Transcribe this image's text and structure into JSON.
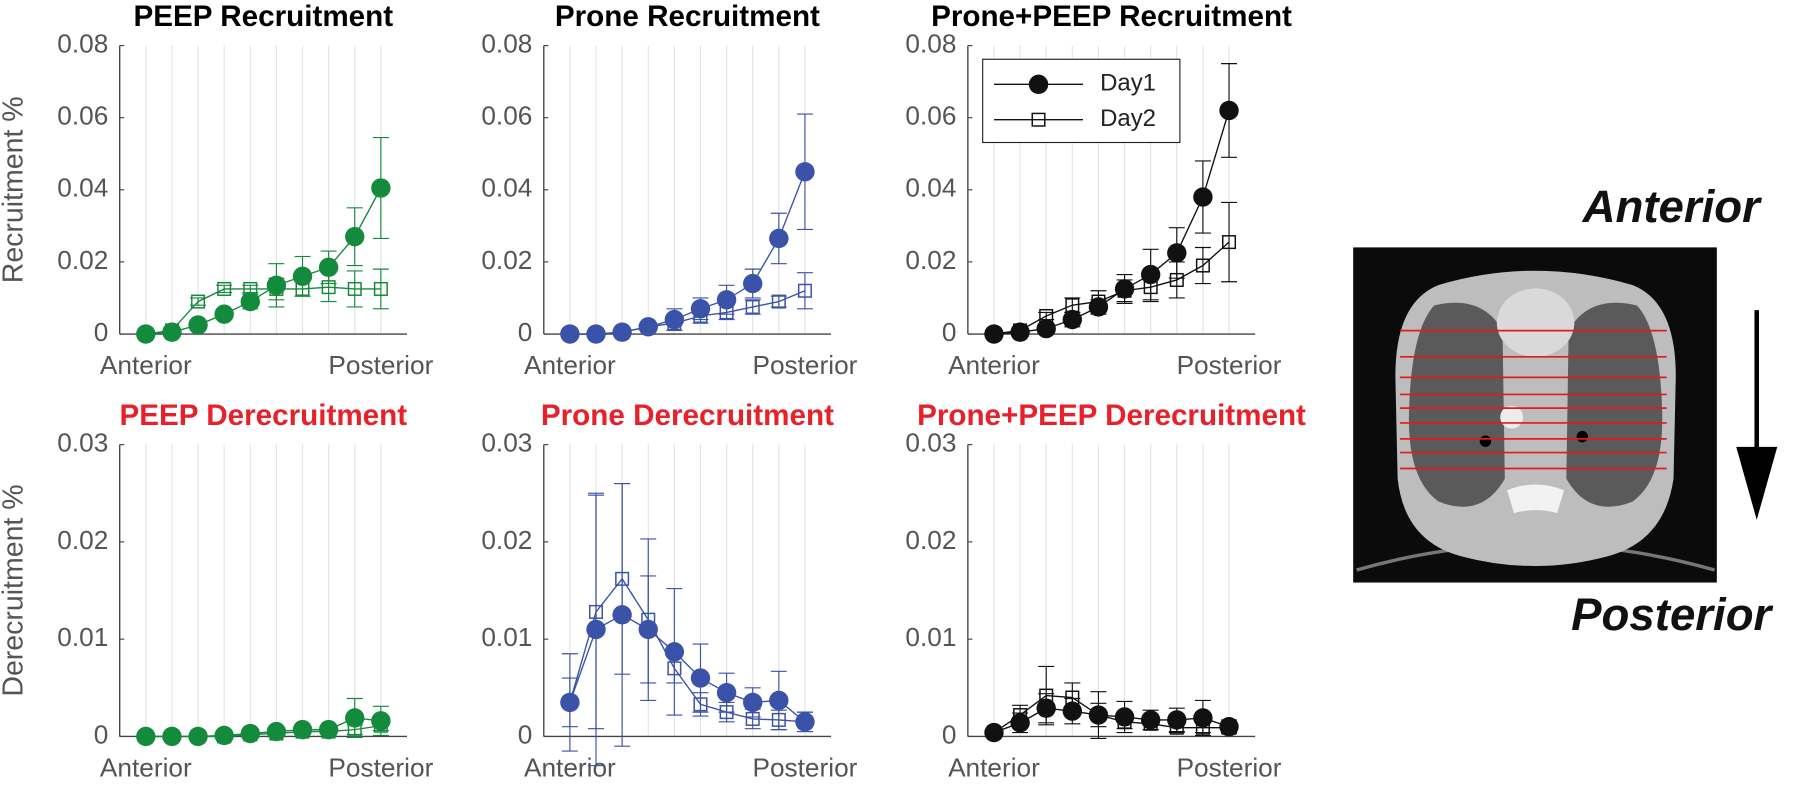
{
  "chart_data": [
    {
      "type": "line",
      "title": "PEEP Recruitment",
      "title_color": "#000000",
      "ylabel": "Recruitment %",
      "categories": [
        "Anterior",
        null,
        null,
        null,
        null,
        null,
        null,
        null,
        null,
        "Posterior"
      ],
      "ylim": [
        0,
        0.08
      ],
      "yticks": [
        0,
        0.02,
        0.04,
        0.06,
        0.08
      ],
      "grid": "x",
      "series": [
        {
          "name": "Day1",
          "color": "#148a3c",
          "marker": "circle",
          "values": [
            0,
            0.0005,
            0.0025,
            0.0055,
            0.009,
            0.0135,
            0.016,
            0.0185,
            0.027,
            0.0405
          ],
          "errors": [
            0,
            0.001,
            0.001,
            0.001,
            0.002,
            0.006,
            0.0055,
            0.0045,
            0.008,
            0.014
          ]
        },
        {
          "name": "Day2",
          "color": "#148a3c",
          "marker": "square",
          "values": [
            0,
            0.001,
            0.009,
            0.0125,
            0.0125,
            0.0125,
            0.0125,
            0.013,
            0.0125,
            0.0125
          ],
          "errors": [
            0,
            0.001,
            0.001,
            0.001,
            0.001,
            0.003,
            0.002,
            0.004,
            0.005,
            0.0055
          ]
        }
      ]
    },
    {
      "type": "line",
      "title": "Prone Recruitment",
      "title_color": "#000000",
      "categories": [
        "Anterior",
        null,
        null,
        null,
        null,
        null,
        null,
        null,
        null,
        "Posterior"
      ],
      "ylim": [
        0,
        0.08
      ],
      "yticks": [
        0,
        0.02,
        0.04,
        0.06,
        0.08
      ],
      "grid": "x",
      "series": [
        {
          "name": "Day1",
          "color": "#3a52a8",
          "marker": "circle",
          "values": [
            0,
            0,
            0.0005,
            0.002,
            0.004,
            0.007,
            0.0095,
            0.014,
            0.0265,
            0.045
          ],
          "errors": [
            0,
            0,
            0,
            0.001,
            0.003,
            0.003,
            0.004,
            0.004,
            0.007,
            0.016
          ]
        },
        {
          "name": "Day2",
          "color": "#3a52a8",
          "marker": "square",
          "values": [
            0,
            0,
            0.0005,
            0.002,
            0.003,
            0.005,
            0.006,
            0.0075,
            0.009,
            0.012
          ],
          "errors": [
            0,
            0,
            0,
            0,
            0.002,
            0.002,
            0.002,
            0.002,
            0.0015,
            0.005
          ]
        }
      ]
    },
    {
      "type": "line",
      "title": "Prone+PEEP Recruitment",
      "title_color": "#000000",
      "legend": "upper-left",
      "categories": [
        "Anterior",
        null,
        null,
        null,
        null,
        null,
        null,
        null,
        null,
        "Posterior"
      ],
      "ylim": [
        0,
        0.08
      ],
      "yticks": [
        0,
        0.02,
        0.04,
        0.06,
        0.08
      ],
      "grid": "x",
      "series": [
        {
          "name": "Day1",
          "color": "#111111",
          "marker": "circle",
          "values": [
            0,
            0.0005,
            0.0015,
            0.004,
            0.0075,
            0.0125,
            0.0165,
            0.0225,
            0.038,
            0.062
          ],
          "errors": [
            0,
            0,
            0.001,
            0.002,
            0.002,
            0.004,
            0.007,
            0.007,
            0.01,
            0.013
          ]
        },
        {
          "name": "Day2",
          "color": "#111111",
          "marker": "square",
          "values": [
            0,
            0.001,
            0.005,
            0.008,
            0.009,
            0.012,
            0.013,
            0.015,
            0.019,
            0.0255
          ],
          "errors": [
            0,
            0.001,
            0.001,
            0.002,
            0.003,
            0.003,
            0.004,
            0.005,
            0.005,
            0.011
          ]
        }
      ]
    },
    {
      "type": "line",
      "title": "PEEP Derecruitment",
      "title_color": "#e8202a",
      "ylabel": "Derecruitment %",
      "categories": [
        "Anterior",
        null,
        null,
        null,
        null,
        null,
        null,
        null,
        null,
        "Posterior"
      ],
      "ylim": [
        0,
        0.03
      ],
      "yticks": [
        0,
        0.01,
        0.02,
        0.03
      ],
      "grid": "x",
      "series": [
        {
          "name": "Day1",
          "color": "#148a3c",
          "marker": "circle",
          "values": [
            0,
            0,
            0,
            0.0001,
            0.0003,
            0.0005,
            0.0007,
            0.0007,
            0.0019,
            0.0016
          ],
          "errors": [
            0,
            0,
            0,
            0,
            0,
            0.0002,
            0.0002,
            0.0003,
            0.002,
            0.0015
          ]
        },
        {
          "name": "Day2",
          "color": "#148a3c",
          "marker": "square",
          "values": [
            0,
            0,
            0,
            0,
            0.0002,
            0.0003,
            0.0005,
            0.0005,
            0.0007,
            0.0011
          ],
          "errors": [
            0,
            0,
            0,
            0,
            0.0002,
            0.0002,
            0.0003,
            0.0003,
            0.0005,
            0.0005
          ]
        }
      ]
    },
    {
      "type": "line",
      "title": "Prone Derecruitment",
      "title_color": "#e8202a",
      "categories": [
        "Anterior",
        null,
        null,
        null,
        null,
        null,
        null,
        null,
        null,
        "Posterior"
      ],
      "ylim": [
        0,
        0.03
      ],
      "yticks": [
        0,
        0.01,
        0.02,
        0.03
      ],
      "grid": "x",
      "series": [
        {
          "name": "Day1",
          "color": "#3a52a8",
          "marker": "circle",
          "values": [
            0.0035,
            0.011,
            0.0125,
            0.011,
            0.0087,
            0.006,
            0.0045,
            0.0035,
            0.0037,
            0.0015
          ],
          "errors": [
            0.005,
            0.014,
            0.0135,
            0.0055,
            0.0065,
            0.0035,
            0.002,
            0.0015,
            0.003,
            0.001
          ]
        },
        {
          "name": "Day2",
          "color": "#3a52a8",
          "marker": "square",
          "values": [
            0.0035,
            0.0128,
            0.0162,
            0.012,
            0.007,
            0.0033,
            0.0025,
            0.0018,
            0.0017,
            0.0015
          ],
          "errors": [
            0.0025,
            0.012,
            0.0098,
            0.0083,
            0.0015,
            0.0012,
            0.001,
            0.001,
            0.001,
            0.001
          ]
        }
      ]
    },
    {
      "type": "line",
      "title": "Prone+PEEP Derecruitment",
      "title_color": "#e8202a",
      "categories": [
        "Anterior",
        null,
        null,
        null,
        null,
        null,
        null,
        null,
        null,
        "Posterior"
      ],
      "ylim": [
        0,
        0.03
      ],
      "yticks": [
        0,
        0.01,
        0.02,
        0.03
      ],
      "grid": "x",
      "series": [
        {
          "name": "Day1",
          "color": "#111111",
          "marker": "circle",
          "values": [
            0.0004,
            0.0014,
            0.0029,
            0.0026,
            0.0022,
            0.002,
            0.0017,
            0.0017,
            0.0019,
            0.001
          ],
          "errors": [
            0.0003,
            0.001,
            0.0015,
            0.0013,
            0.0024,
            0.0016,
            0.001,
            0.0012,
            0.0018,
            0.0007
          ]
        },
        {
          "name": "Day2",
          "color": "#111111",
          "marker": "square",
          "values": [
            0.0004,
            0.0022,
            0.0042,
            0.004,
            0.0022,
            0.0015,
            0.0013,
            0.0009,
            0.0009,
            0.0009
          ],
          "errors": [
            0.0003,
            0.001,
            0.003,
            0.0015,
            0.0012,
            0.0007,
            0.0006,
            0.0005,
            0.0005,
            0.0005
          ]
        }
      ]
    }
  ],
  "illustration": {
    "top_label": "Anterior",
    "bottom_label": "Posterior"
  }
}
